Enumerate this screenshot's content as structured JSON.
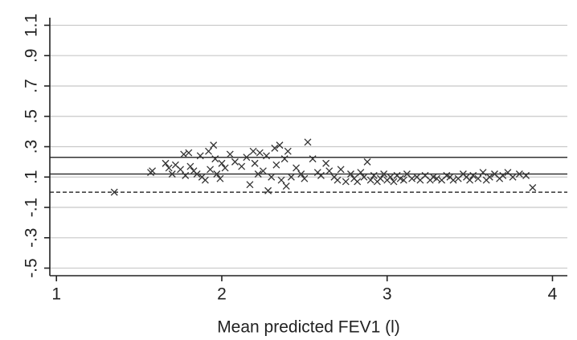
{
  "chart_data": {
    "type": "scatter",
    "xlabel": "Mean predicted FEV1 (l)",
    "x": [
      1.35,
      1.57,
      1.58,
      1.66,
      1.68,
      1.7,
      1.72,
      1.75,
      1.77,
      1.78,
      1.8,
      1.81,
      1.83,
      1.85,
      1.87,
      1.88,
      1.9,
      1.92,
      1.93,
      1.95,
      1.96,
      1.97,
      1.99,
      2.0,
      2.02,
      2.05,
      2.08,
      2.12,
      2.15,
      2.17,
      2.19,
      2.2,
      2.22,
      2.23,
      2.25,
      2.27,
      2.28,
      2.3,
      2.32,
      2.33,
      2.35,
      2.36,
      2.38,
      2.39,
      2.4,
      2.42,
      2.45,
      2.48,
      2.5,
      2.52,
      2.55,
      2.58,
      2.6,
      2.63,
      2.65,
      2.68,
      2.7,
      2.72,
      2.75,
      2.78,
      2.8,
      2.82,
      2.84,
      2.86,
      2.88,
      2.9,
      2.92,
      2.94,
      2.96,
      2.98,
      3.0,
      3.02,
      3.04,
      3.06,
      3.08,
      3.1,
      3.12,
      3.15,
      3.18,
      3.2,
      3.23,
      3.26,
      3.28,
      3.3,
      3.33,
      3.36,
      3.38,
      3.4,
      3.43,
      3.46,
      3.48,
      3.5,
      3.52,
      3.55,
      3.58,
      3.6,
      3.62,
      3.65,
      3.68,
      3.7,
      3.73,
      3.76,
      3.8,
      3.84,
      3.88
    ],
    "values": [
      0.0,
      0.13,
      0.14,
      0.19,
      0.16,
      0.12,
      0.18,
      0.15,
      0.25,
      0.11,
      0.26,
      0.17,
      0.14,
      0.12,
      0.24,
      0.1,
      0.08,
      0.27,
      0.15,
      0.31,
      0.22,
      0.12,
      0.09,
      0.19,
      0.16,
      0.25,
      0.2,
      0.17,
      0.23,
      0.05,
      0.27,
      0.19,
      0.12,
      0.26,
      0.14,
      0.24,
      0.01,
      0.1,
      0.29,
      0.18,
      0.31,
      0.08,
      0.22,
      0.04,
      0.27,
      0.1,
      0.16,
      0.12,
      0.09,
      0.33,
      0.22,
      0.13,
      0.11,
      0.19,
      0.14,
      0.1,
      0.08,
      0.15,
      0.07,
      0.12,
      0.09,
      0.07,
      0.13,
      0.1,
      0.2,
      0.08,
      0.11,
      0.07,
      0.09,
      0.12,
      0.08,
      0.1,
      0.07,
      0.11,
      0.09,
      0.08,
      0.12,
      0.09,
      0.1,
      0.08,
      0.11,
      0.08,
      0.1,
      0.09,
      0.08,
      0.11,
      0.1,
      0.08,
      0.09,
      0.12,
      0.1,
      0.08,
      0.11,
      0.09,
      0.13,
      0.08,
      0.1,
      0.12,
      0.09,
      0.11,
      0.13,
      0.1,
      0.12,
      0.11,
      0.03
    ],
    "color": "#333333",
    "xlim": [
      0.96,
      4.09
    ],
    "ylim": [
      -0.55,
      1.15
    ],
    "xticks": [
      1,
      2,
      3,
      4
    ],
    "yticks": [
      {
        "value": -0.5,
        "label": "-.5"
      },
      {
        "value": -0.3,
        "label": "-.3"
      },
      {
        "value": -0.1,
        "label": "-.1"
      },
      {
        "value": 0.1,
        "label": ".1"
      },
      {
        "value": 0.3,
        "label": ".3"
      },
      {
        "value": 0.5,
        "label": ".5"
      },
      {
        "value": 0.7,
        "label": ".7"
      },
      {
        "value": 0.9,
        "label": ".9"
      },
      1.1
    ],
    "grid": true,
    "hlines": [
      {
        "value": 0.23,
        "style": "solid"
      },
      {
        "value": 0.12,
        "style": "solid"
      },
      {
        "value": 0,
        "style": "dashed"
      }
    ]
  }
}
